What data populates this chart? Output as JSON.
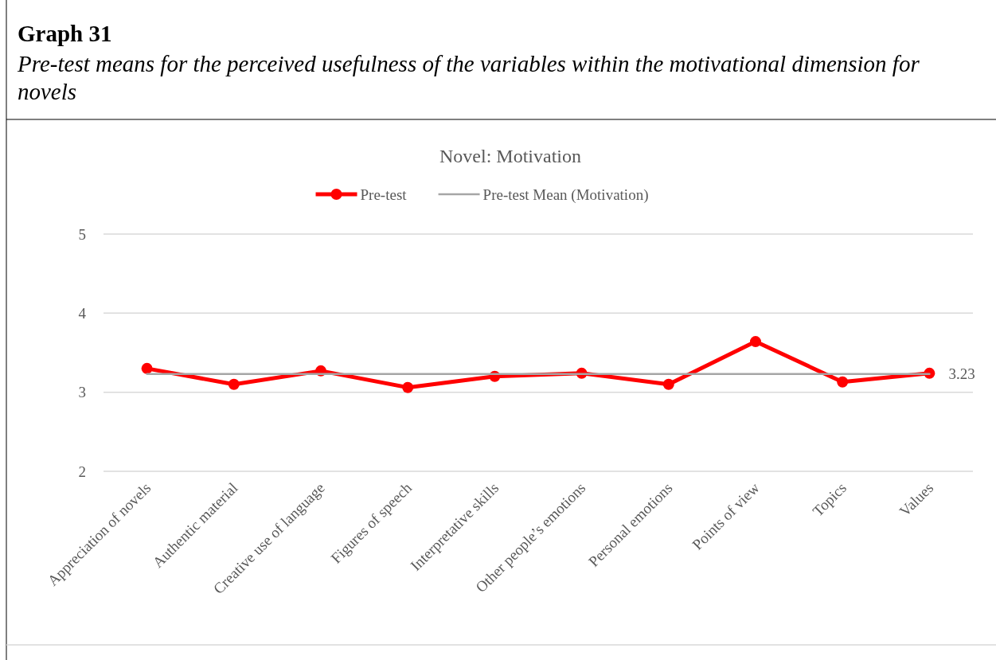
{
  "chart_data": {
    "type": "line",
    "title": "Graph 31",
    "subtitle": "Pre-test means for the perceived usefulness of the variables within the motivational dimension for novels",
    "annotations": [
      "Novel: Motivation"
    ],
    "categories": [
      "Appreciation of novels",
      "Authentic material",
      "Creative use of language",
      "Figures of speech",
      "Interpretative skills",
      "Other people’s emotions",
      "Personal emotions",
      "Points of view",
      "Topics",
      "Values"
    ],
    "series": [
      {
        "name": "Pre-test",
        "color": "#ff0000",
        "marker": "circle",
        "values": [
          3.3,
          3.1,
          3.27,
          3.06,
          3.2,
          3.24,
          3.1,
          3.64,
          3.13,
          3.24
        ]
      },
      {
        "name": "Pre-test Mean (Motivation)",
        "color": "#a6a6a6",
        "marker": "none",
        "values": [
          3.23,
          3.23,
          3.23,
          3.23,
          3.23,
          3.23,
          3.23,
          3.23,
          3.23,
          3.23
        ],
        "value_labels": [
          null,
          null,
          null,
          null,
          null,
          null,
          null,
          null,
          null,
          "3.23"
        ]
      }
    ],
    "ylim": [
      2,
      5
    ],
    "yticks": [
      2,
      3,
      4,
      5
    ],
    "grid": "y",
    "legend": "top"
  }
}
